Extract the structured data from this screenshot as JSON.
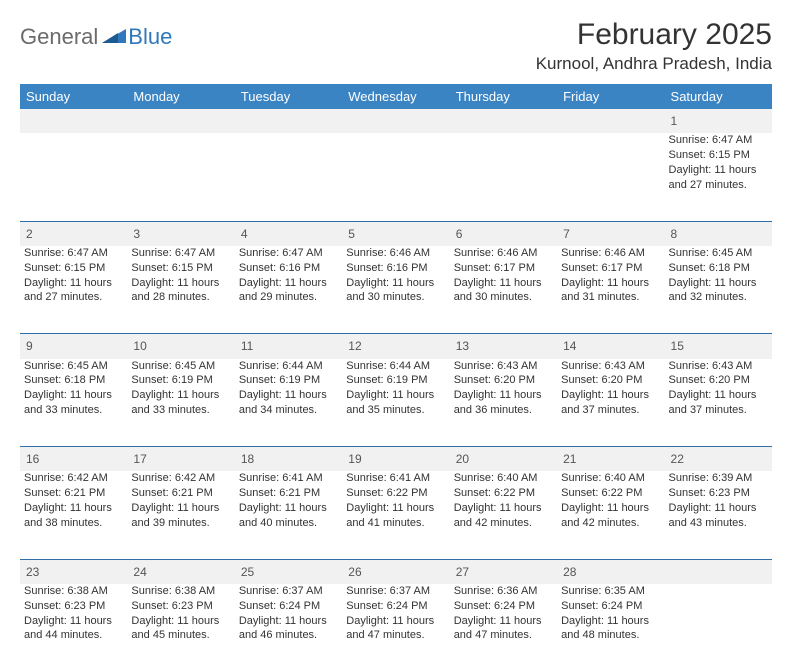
{
  "logo": {
    "general": "General",
    "blue": "Blue"
  },
  "title": "February 2025",
  "location": "Kurnool, Andhra Pradesh, India",
  "colors": {
    "header_bg": "#3b84c4",
    "header_text": "#ffffff",
    "border": "#2f6fa6",
    "daynum_bg": "#f1f1f1",
    "body_text": "#333333",
    "logo_gray": "#6b6b6b",
    "logo_blue": "#2f78bd"
  },
  "day_headers": [
    "Sunday",
    "Monday",
    "Tuesday",
    "Wednesday",
    "Thursday",
    "Friday",
    "Saturday"
  ],
  "weeks": [
    [
      null,
      null,
      null,
      null,
      null,
      null,
      {
        "n": "1",
        "sunrise": "6:47 AM",
        "sunset": "6:15 PM",
        "dl": "11 hours and 27 minutes."
      }
    ],
    [
      {
        "n": "2",
        "sunrise": "6:47 AM",
        "sunset": "6:15 PM",
        "dl": "11 hours and 27 minutes."
      },
      {
        "n": "3",
        "sunrise": "6:47 AM",
        "sunset": "6:15 PM",
        "dl": "11 hours and 28 minutes."
      },
      {
        "n": "4",
        "sunrise": "6:47 AM",
        "sunset": "6:16 PM",
        "dl": "11 hours and 29 minutes."
      },
      {
        "n": "5",
        "sunrise": "6:46 AM",
        "sunset": "6:16 PM",
        "dl": "11 hours and 30 minutes."
      },
      {
        "n": "6",
        "sunrise": "6:46 AM",
        "sunset": "6:17 PM",
        "dl": "11 hours and 30 minutes."
      },
      {
        "n": "7",
        "sunrise": "6:46 AM",
        "sunset": "6:17 PM",
        "dl": "11 hours and 31 minutes."
      },
      {
        "n": "8",
        "sunrise": "6:45 AM",
        "sunset": "6:18 PM",
        "dl": "11 hours and 32 minutes."
      }
    ],
    [
      {
        "n": "9",
        "sunrise": "6:45 AM",
        "sunset": "6:18 PM",
        "dl": "11 hours and 33 minutes."
      },
      {
        "n": "10",
        "sunrise": "6:45 AM",
        "sunset": "6:19 PM",
        "dl": "11 hours and 33 minutes."
      },
      {
        "n": "11",
        "sunrise": "6:44 AM",
        "sunset": "6:19 PM",
        "dl": "11 hours and 34 minutes."
      },
      {
        "n": "12",
        "sunrise": "6:44 AM",
        "sunset": "6:19 PM",
        "dl": "11 hours and 35 minutes."
      },
      {
        "n": "13",
        "sunrise": "6:43 AM",
        "sunset": "6:20 PM",
        "dl": "11 hours and 36 minutes."
      },
      {
        "n": "14",
        "sunrise": "6:43 AM",
        "sunset": "6:20 PM",
        "dl": "11 hours and 37 minutes."
      },
      {
        "n": "15",
        "sunrise": "6:43 AM",
        "sunset": "6:20 PM",
        "dl": "11 hours and 37 minutes."
      }
    ],
    [
      {
        "n": "16",
        "sunrise": "6:42 AM",
        "sunset": "6:21 PM",
        "dl": "11 hours and 38 minutes."
      },
      {
        "n": "17",
        "sunrise": "6:42 AM",
        "sunset": "6:21 PM",
        "dl": "11 hours and 39 minutes."
      },
      {
        "n": "18",
        "sunrise": "6:41 AM",
        "sunset": "6:21 PM",
        "dl": "11 hours and 40 minutes."
      },
      {
        "n": "19",
        "sunrise": "6:41 AM",
        "sunset": "6:22 PM",
        "dl": "11 hours and 41 minutes."
      },
      {
        "n": "20",
        "sunrise": "6:40 AM",
        "sunset": "6:22 PM",
        "dl": "11 hours and 42 minutes."
      },
      {
        "n": "21",
        "sunrise": "6:40 AM",
        "sunset": "6:22 PM",
        "dl": "11 hours and 42 minutes."
      },
      {
        "n": "22",
        "sunrise": "6:39 AM",
        "sunset": "6:23 PM",
        "dl": "11 hours and 43 minutes."
      }
    ],
    [
      {
        "n": "23",
        "sunrise": "6:38 AM",
        "sunset": "6:23 PM",
        "dl": "11 hours and 44 minutes."
      },
      {
        "n": "24",
        "sunrise": "6:38 AM",
        "sunset": "6:23 PM",
        "dl": "11 hours and 45 minutes."
      },
      {
        "n": "25",
        "sunrise": "6:37 AM",
        "sunset": "6:24 PM",
        "dl": "11 hours and 46 minutes."
      },
      {
        "n": "26",
        "sunrise": "6:37 AM",
        "sunset": "6:24 PM",
        "dl": "11 hours and 47 minutes."
      },
      {
        "n": "27",
        "sunrise": "6:36 AM",
        "sunset": "6:24 PM",
        "dl": "11 hours and 47 minutes."
      },
      {
        "n": "28",
        "sunrise": "6:35 AM",
        "sunset": "6:24 PM",
        "dl": "11 hours and 48 minutes."
      },
      null
    ]
  ],
  "labels": {
    "sunrise": "Sunrise: ",
    "sunset": "Sunset: ",
    "daylight": "Daylight: "
  }
}
